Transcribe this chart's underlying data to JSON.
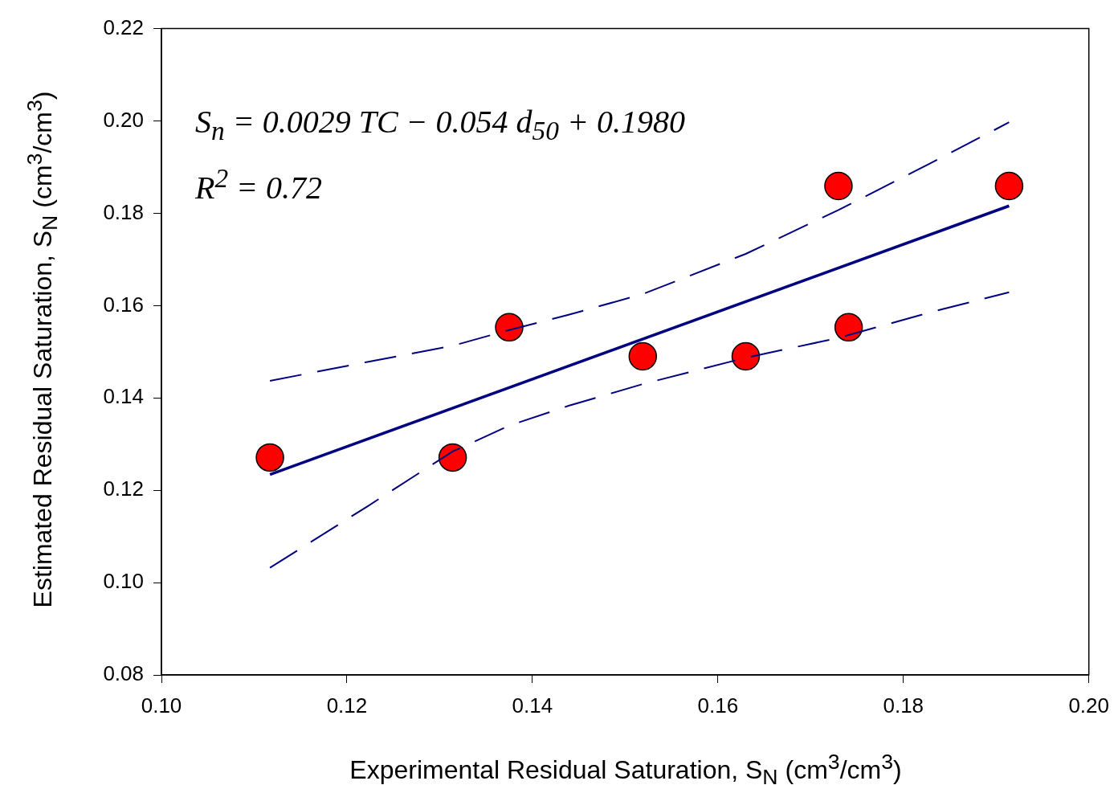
{
  "chart_data": {
    "type": "scatter",
    "xlabel": "Experimental Residual Saturation, S$_{N}$ (cm$^{3}$/cm$^{3}$)",
    "ylabel": "Estimated Residual Saturation, S$_{N}$ (cm$^{3}$/cm$^{3}$)",
    "annotations": [
      "S$_{n}$ = 0.0029 TC − 0.054 d$_{50}$ + 0.1980",
      "R$^{2}$ = 0.72"
    ],
    "xlim": [
      0.1,
      0.2
    ],
    "xticks": [
      {
        "value": 0.1,
        "label": "0.10"
      },
      {
        "value": 0.12,
        "label": "0.12"
      },
      {
        "value": 0.14,
        "label": "0.14"
      },
      {
        "value": 0.16,
        "label": "0.16"
      },
      {
        "value": 0.18,
        "label": "0.18"
      },
      {
        "value": 0.2,
        "label": "0.20"
      }
    ],
    "ylim": [
      0.08,
      0.22
    ],
    "yticks": [
      {
        "value": 0.08,
        "label": "0.08"
      },
      {
        "value": 0.1,
        "label": "0.10"
      },
      {
        "value": 0.12,
        "label": "0.12"
      },
      {
        "value": 0.14,
        "label": "0.14"
      },
      {
        "value": 0.16,
        "label": "0.16"
      },
      {
        "value": 0.18,
        "label": "0.18"
      },
      {
        "value": 0.2,
        "label": "0.20"
      },
      {
        "value": 0.22,
        "label": "0.22"
      }
    ],
    "grid": false,
    "legend": false,
    "series": [
      {
        "color": "#ff0000",
        "marker": "circle",
        "x": [
          0.1117,
          0.1314,
          0.1375,
          0.1519,
          0.163,
          0.173,
          0.1741,
          0.1914
        ],
        "values": [
          0.1271,
          0.1271,
          0.1553,
          0.149,
          0.149,
          0.1859,
          0.1553,
          0.1859
        ]
      },
      {
        "type": "line",
        "color": "#000080",
        "line_style": "solid",
        "marker": "none",
        "x": [
          0.1117,
          0.1914
        ],
        "values": [
          0.1234,
          0.1816
        ]
      },
      {
        "type": "line",
        "color": "#000080",
        "line_style": "dashed",
        "marker": "none",
        "x": [
          0.1117,
          0.1222,
          0.1314,
          0.1375,
          0.1439,
          0.1519,
          0.163,
          0.173,
          0.1828,
          0.1914
        ],
        "values": [
          0.1437,
          0.1478,
          0.1513,
          0.1547,
          0.158,
          0.1625,
          0.1712,
          0.1807,
          0.1907,
          0.1997
        ]
      },
      {
        "type": "line",
        "color": "#000080",
        "line_style": "dashed",
        "marker": "none",
        "x": [
          0.1117,
          0.1222,
          0.1314,
          0.1375,
          0.1439,
          0.1519,
          0.163,
          0.173,
          0.1828,
          0.1914
        ],
        "values": [
          0.1032,
          0.1165,
          0.1284,
          0.134,
          0.1383,
          0.143,
          0.1487,
          0.153,
          0.1585,
          0.1629
        ]
      }
    ]
  }
}
